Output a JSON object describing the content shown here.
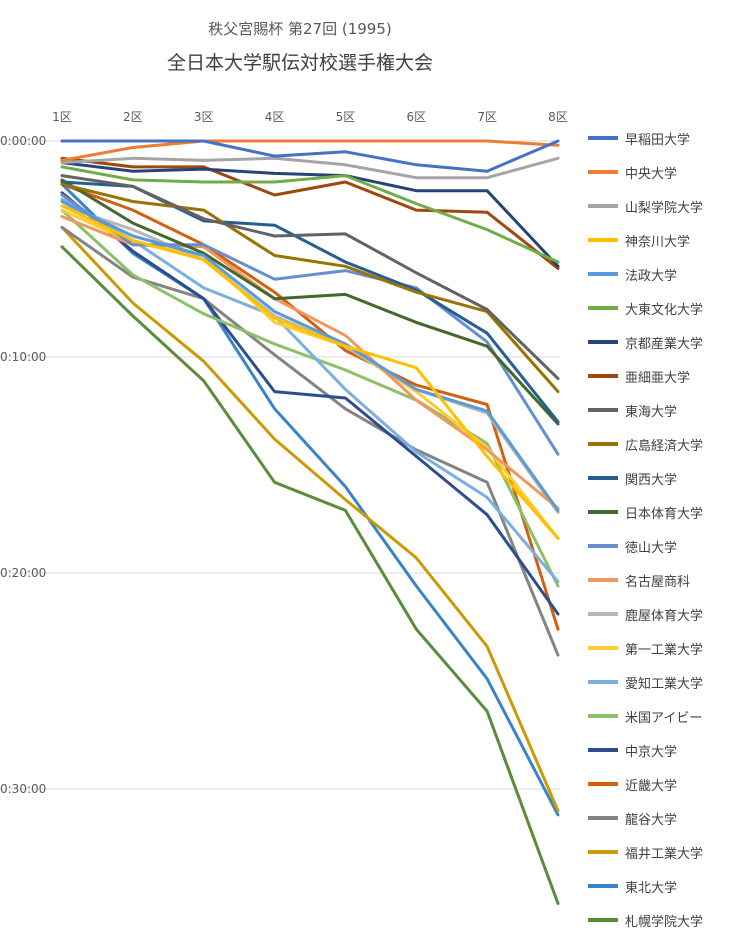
{
  "title": {
    "sub": "秩父宮賜杯 第27回 (1995)",
    "main": "全日本大学駅伝対校選手権大会"
  },
  "chart_data": {
    "type": "line",
    "title": "全日本大学駅伝対校選手権大会",
    "subtitle": "秩父宮賜杯 第27回 (1995)",
    "x": [
      "1区",
      "2区",
      "3区",
      "4区",
      "5区",
      "6区",
      "7区",
      "8区"
    ],
    "y_ticks": [
      "0:00:00",
      "0:10:00",
      "0:20:00",
      "0:30:00"
    ],
    "y_axis": {
      "min": 0,
      "max": 36,
      "reversed": true,
      "unit": "minutes behind leader"
    },
    "grid": true,
    "legend_position": "right",
    "series": [
      {
        "name": "早稲田大学",
        "color": "#4472c4",
        "values": [
          0,
          0,
          0,
          0.7,
          0.5,
          1.1,
          1.4,
          0
        ]
      },
      {
        "name": "中央大学",
        "color": "#ed7d31",
        "values": [
          0.9,
          0.3,
          0,
          0,
          0,
          0,
          0,
          0.2
        ]
      },
      {
        "name": "山梨学院大学",
        "color": "#a5a5a5",
        "values": [
          1,
          0.8,
          0.9,
          0.8,
          1.1,
          1.7,
          1.7,
          0.8
        ]
      },
      {
        "name": "神奈川大学",
        "color": "#ffc000",
        "values": [
          3,
          4.6,
          5.5,
          8.2,
          9.5,
          10.5,
          14.6,
          18.4
        ]
      },
      {
        "name": "法政大学",
        "color": "#5b9bd5",
        "values": [
          2.8,
          4.4,
          5.3,
          7.9,
          9.4,
          11.5,
          12.5,
          17.1
        ]
      },
      {
        "name": "大東文化大学",
        "color": "#70ad47",
        "values": [
          1.2,
          1.8,
          1.9,
          1.9,
          1.6,
          2.9,
          4.1,
          5.6
        ]
      },
      {
        "name": "京都産業大学",
        "color": "#264478",
        "values": [
          1,
          1.4,
          1.3,
          1.5,
          1.6,
          2.3,
          2.3,
          5.8
        ]
      },
      {
        "name": "亜細亜大学",
        "color": "#9e480e",
        "values": [
          0.8,
          1.2,
          1.2,
          2.5,
          1.9,
          3.2,
          3.3,
          5.9
        ]
      },
      {
        "name": "東海大学",
        "color": "#636363",
        "values": [
          1.6,
          2.1,
          3.6,
          4.4,
          4.3,
          6.1,
          7.8,
          11
        ]
      },
      {
        "name": "広島経済大学",
        "color": "#997300",
        "values": [
          2,
          2.8,
          3.2,
          5.3,
          5.8,
          7,
          7.9,
          11.6
        ]
      },
      {
        "name": "関西大学",
        "color": "#255e91",
        "values": [
          1.9,
          2.1,
          3.7,
          3.9,
          5.6,
          6.9,
          8.9,
          13
        ]
      },
      {
        "name": "日本体育大学",
        "color": "#43682b",
        "values": [
          1.8,
          3.8,
          5.2,
          7.3,
          7.1,
          8.4,
          9.5,
          13.1
        ]
      },
      {
        "name": "徳山大学",
        "color": "#698ed0",
        "values": [
          2.5,
          4.8,
          4.8,
          6.4,
          6,
          6.8,
          9.3,
          14.5
        ]
      },
      {
        "name": "名古屋商科",
        "color": "#f1975a",
        "values": [
          3.5,
          4.8,
          4.9,
          7.3,
          9,
          12,
          14.3,
          17
        ]
      },
      {
        "name": "鹿屋体育大学",
        "color": "#b7b7b7",
        "values": [
          3,
          4.1,
          5.5,
          8.1,
          9.5,
          11.5,
          12.6,
          17.2
        ]
      },
      {
        "name": "第一工業大学",
        "color": "#ffcd33",
        "values": [
          3.2,
          4.7,
          5.3,
          8.4,
          9.5,
          11.6,
          14.2,
          18.4
        ]
      },
      {
        "name": "愛知工業大学",
        "color": "#7cafdd",
        "values": [
          2.7,
          4.6,
          6.8,
          8.1,
          11.5,
          14.4,
          16.5,
          20.4
        ]
      },
      {
        "name": "米国アイビー",
        "color": "#8cc168",
        "values": [
          3.2,
          6.2,
          8,
          9.4,
          10.6,
          12,
          14,
          20.6
        ]
      },
      {
        "name": "中京大学",
        "color": "#2e4d8c",
        "values": [
          2.4,
          5.1,
          7.3,
          11.6,
          11.9,
          14.6,
          17.3,
          21.9
        ]
      },
      {
        "name": "近畿大学",
        "color": "#d26012",
        "values": [
          2,
          3.2,
          4.8,
          7,
          9.7,
          11.3,
          12.2,
          22.6
        ]
      },
      {
        "name": "龍谷大学",
        "color": "#848484",
        "values": [
          4,
          6.3,
          7.3,
          9.9,
          12.4,
          14.3,
          15.8,
          23.8
        ]
      },
      {
        "name": "福井工業大学",
        "color": "#cc9a06",
        "values": [
          4,
          7.5,
          10.2,
          13.8,
          16.6,
          19.3,
          23.4,
          31
        ]
      },
      {
        "name": "東北大学",
        "color": "#3a84c6",
        "values": [
          2,
          5.2,
          7.3,
          12.4,
          16,
          20.6,
          24.9,
          31.2
        ]
      },
      {
        "name": "札幌学院大学",
        "color": "#5b8c3a",
        "values": [
          4.9,
          8.1,
          11.1,
          15.8,
          17.1,
          22.6,
          26.4,
          35.3
        ]
      }
    ]
  }
}
